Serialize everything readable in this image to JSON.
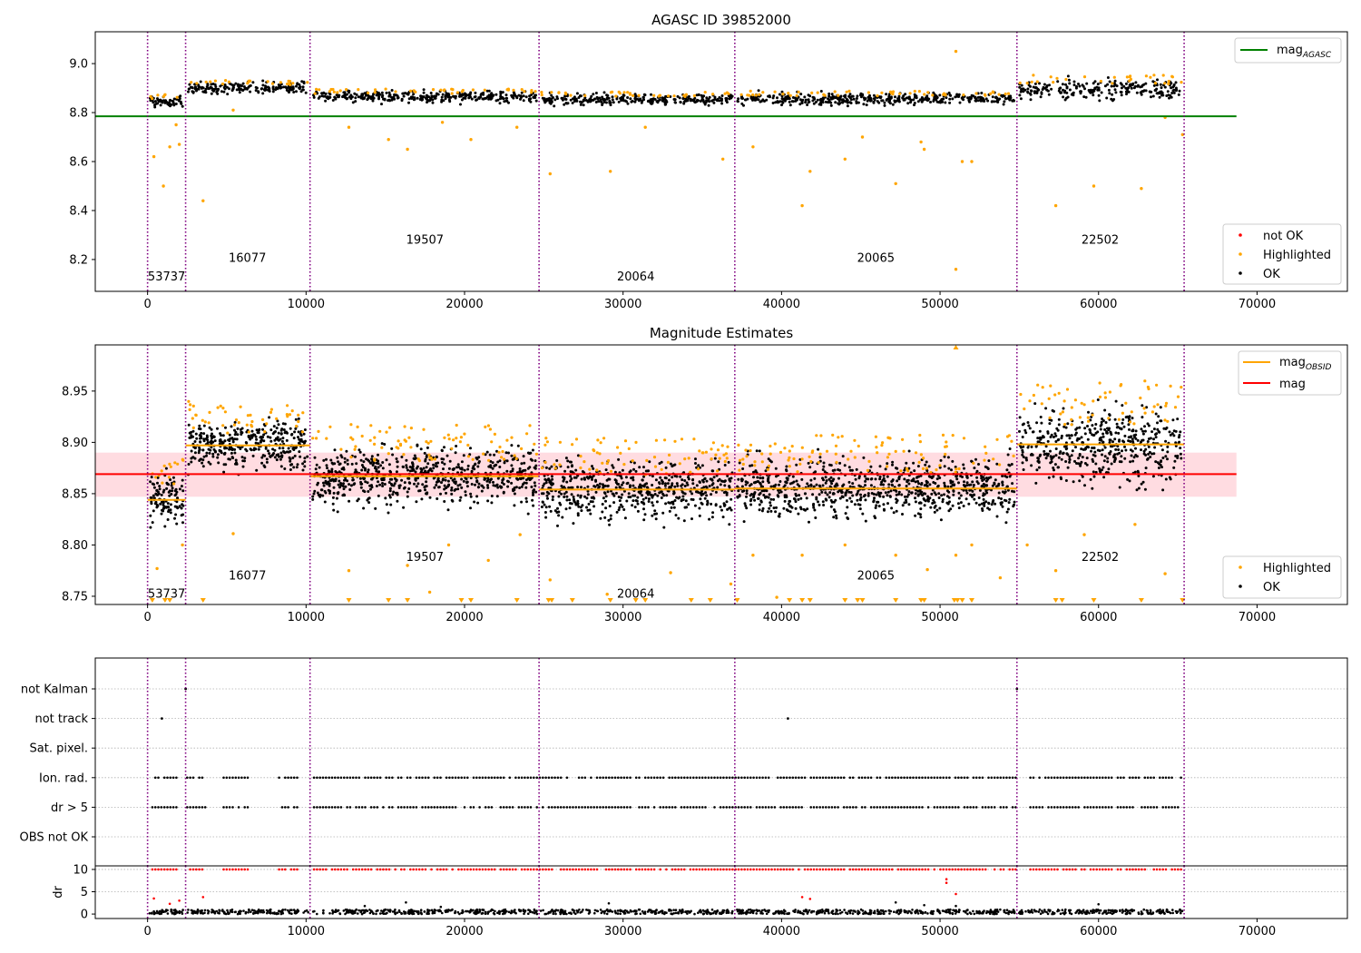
{
  "chart_data": [
    {
      "type": "scatter",
      "title": "AGASC ID 39852000",
      "xlim": [
        -3300,
        75700
      ],
      "ylim": [
        8.07,
        9.13
      ],
      "x_ticks": [
        0,
        10000,
        20000,
        30000,
        40000,
        50000,
        60000,
        70000
      ],
      "y_ticks": [
        8.2,
        8.4,
        8.6,
        8.8,
        9.0
      ],
      "obs_boundaries": [
        0,
        2400,
        10250,
        24700,
        37050,
        54850,
        65400
      ],
      "obs_labels": [
        {
          "text": "53737",
          "x": 1200,
          "y": 8.13
        },
        {
          "text": "16077",
          "x": 6300,
          "y": 8.205
        },
        {
          "text": "19507",
          "x": 17500,
          "y": 8.28
        },
        {
          "text": "20064",
          "x": 30800,
          "y": 8.13
        },
        {
          "text": "20065",
          "x": 45950,
          "y": 8.205
        },
        {
          "text": "22502",
          "x": 60100,
          "y": 8.28
        }
      ],
      "reference_lines": [
        {
          "name": "mag_AGASC",
          "y": 8.785,
          "x_range": [
            -3300,
            68700
          ],
          "color": "#008000"
        }
      ],
      "segments": [
        {
          "x": [
            0,
            2400
          ],
          "mean": 8.845,
          "spread": 0.022
        },
        {
          "x": [
            2400,
            10250
          ],
          "mean": 8.9,
          "spread": 0.022
        },
        {
          "x": [
            10250,
            24700
          ],
          "mean": 8.865,
          "spread": 0.022
        },
        {
          "x": [
            24700,
            37050
          ],
          "mean": 8.853,
          "spread": 0.022
        },
        {
          "x": [
            37050,
            54850
          ],
          "mean": 8.856,
          "spread": 0.022
        },
        {
          "x": [
            54850,
            65400
          ],
          "mean": 8.895,
          "spread": 0.04
        }
      ],
      "highlighted_outliers": [
        {
          "x": 400,
          "y": 8.62
        },
        {
          "x": 1000,
          "y": 8.5
        },
        {
          "x": 1400,
          "y": 8.66
        },
        {
          "x": 1800,
          "y": 8.75
        },
        {
          "x": 2000,
          "y": 8.67
        },
        {
          "x": 3500,
          "y": 8.44
        },
        {
          "x": 5400,
          "y": 8.81
        },
        {
          "x": 12700,
          "y": 8.74
        },
        {
          "x": 15200,
          "y": 8.69
        },
        {
          "x": 16400,
          "y": 8.65
        },
        {
          "x": 18600,
          "y": 8.76
        },
        {
          "x": 20400,
          "y": 8.69
        },
        {
          "x": 23300,
          "y": 8.74
        },
        {
          "x": 25400,
          "y": 8.55
        },
        {
          "x": 29200,
          "y": 8.56
        },
        {
          "x": 31400,
          "y": 8.74
        },
        {
          "x": 36300,
          "y": 8.61
        },
        {
          "x": 38200,
          "y": 8.66
        },
        {
          "x": 41300,
          "y": 8.42
        },
        {
          "x": 41800,
          "y": 8.56
        },
        {
          "x": 44000,
          "y": 8.61
        },
        {
          "x": 45100,
          "y": 8.7
        },
        {
          "x": 47200,
          "y": 8.51
        },
        {
          "x": 48800,
          "y": 8.68
        },
        {
          "x": 49000,
          "y": 8.65
        },
        {
          "x": 51000,
          "y": 9.05
        },
        {
          "x": 51000,
          "y": 8.16
        },
        {
          "x": 51400,
          "y": 8.6
        },
        {
          "x": 52000,
          "y": 8.6
        },
        {
          "x": 57300,
          "y": 8.42
        },
        {
          "x": 59700,
          "y": 8.5
        },
        {
          "x": 62700,
          "y": 8.49
        },
        {
          "x": 64200,
          "y": 8.78
        },
        {
          "x": 65300,
          "y": 8.71
        }
      ],
      "legends": [
        {
          "position": "upper-right",
          "items": [
            {
              "label": "mag",
              "subscript": "AGASC",
              "marker": "line",
              "color": "#008000"
            }
          ]
        },
        {
          "position": "lower-right",
          "items": [
            {
              "label": "not OK",
              "marker": "dot",
              "color": "#ff0000"
            },
            {
              "label": "Highlighted",
              "marker": "dot",
              "color": "#ffa500"
            },
            {
              "label": "OK",
              "marker": "dot",
              "color": "#000000"
            }
          ]
        }
      ]
    },
    {
      "type": "scatter",
      "title": "Magnitude Estimates",
      "xlim": [
        -3300,
        75700
      ],
      "ylim": [
        8.742,
        8.995
      ],
      "x_ticks": [
        0,
        10000,
        20000,
        30000,
        40000,
        50000,
        60000,
        70000
      ],
      "y_ticks": [
        8.75,
        8.8,
        8.85,
        8.9,
        8.95
      ],
      "obs_boundaries": [
        0,
        2400,
        10250,
        24700,
        37050,
        54850,
        65400
      ],
      "obs_labels": [
        {
          "text": "53737",
          "x": 1200,
          "y": 8.752
        },
        {
          "text": "16077",
          "x": 6300,
          "y": 8.77
        },
        {
          "text": "19507",
          "x": 17500,
          "y": 8.788
        },
        {
          "text": "20064",
          "x": 30800,
          "y": 8.752
        },
        {
          "text": "20065",
          "x": 45950,
          "y": 8.77
        },
        {
          "text": "22502",
          "x": 60100,
          "y": 8.788
        }
      ],
      "mag": {
        "y": 8.869,
        "band": [
          8.847,
          8.89
        ],
        "x_range": [
          -3300,
          68700
        ],
        "color": "#ff0000"
      },
      "segments": [
        {
          "x": [
            0,
            2400
          ],
          "mean": 8.844,
          "spread": 0.022
        },
        {
          "x": [
            2400,
            10250
          ],
          "mean": 8.897,
          "spread": 0.022
        },
        {
          "x": [
            10250,
            24700
          ],
          "mean": 8.867,
          "spread": 0.026
        },
        {
          "x": [
            24700,
            37050
          ],
          "mean": 8.854,
          "spread": 0.026
        },
        {
          "x": [
            37050,
            54850
          ],
          "mean": 8.855,
          "spread": 0.027
        },
        {
          "x": [
            54850,
            65400
          ],
          "mean": 8.898,
          "spread": 0.032
        }
      ],
      "highlighted_outliers": [
        {
          "x": 600,
          "y": 8.777
        },
        {
          "x": 2200,
          "y": 8.8
        },
        {
          "x": 5400,
          "y": 8.811
        },
        {
          "x": 12700,
          "y": 8.775
        },
        {
          "x": 16400,
          "y": 8.78
        },
        {
          "x": 17800,
          "y": 8.754
        },
        {
          "x": 19000,
          "y": 8.8
        },
        {
          "x": 21500,
          "y": 8.785
        },
        {
          "x": 23500,
          "y": 8.81
        },
        {
          "x": 25400,
          "y": 8.766
        },
        {
          "x": 29000,
          "y": 8.752
        },
        {
          "x": 33000,
          "y": 8.773
        },
        {
          "x": 36800,
          "y": 8.762
        },
        {
          "x": 38200,
          "y": 8.79
        },
        {
          "x": 39700,
          "y": 8.749
        },
        {
          "x": 41300,
          "y": 8.79
        },
        {
          "x": 44000,
          "y": 8.8
        },
        {
          "x": 47200,
          "y": 8.79
        },
        {
          "x": 49200,
          "y": 8.776
        },
        {
          "x": 51000,
          "y": 8.79
        },
        {
          "x": 52000,
          "y": 8.8
        },
        {
          "x": 53800,
          "y": 8.768
        },
        {
          "x": 55500,
          "y": 8.8
        },
        {
          "x": 57300,
          "y": 8.775
        },
        {
          "x": 59100,
          "y": 8.81
        },
        {
          "x": 62300,
          "y": 8.82
        },
        {
          "x": 64200,
          "y": 8.772
        }
      ],
      "clipped_markers_x": [
        300,
        1100,
        1400,
        3500,
        12700,
        15200,
        16400,
        19800,
        20400,
        23300,
        25300,
        25500,
        26800,
        29200,
        30800,
        31400,
        34300,
        35500,
        37200,
        40500,
        41300,
        41800,
        44000,
        44800,
        45100,
        47200,
        48800,
        49000,
        50900,
        51100,
        51400,
        52000,
        57300,
        57700,
        59700,
        62700,
        65300
      ],
      "top_clipped_marker": {
        "x": 51000,
        "y": 8.993
      },
      "legends": [
        {
          "position": "upper-right",
          "items": [
            {
              "label": "mag",
              "subscript": "OBSID",
              "marker": "line",
              "color": "#ffa500"
            },
            {
              "label": "mag",
              "marker": "line",
              "color": "#ff0000"
            }
          ]
        },
        {
          "position": "lower-right",
          "items": [
            {
              "label": "Highlighted",
              "marker": "dot",
              "color": "#ffa500"
            },
            {
              "label": "OK",
              "marker": "dot",
              "color": "#000000"
            }
          ]
        }
      ]
    },
    {
      "type": "scatter",
      "xlim": [
        -3300,
        75700
      ],
      "x_ticks": [
        0,
        10000,
        20000,
        30000,
        40000,
        50000,
        60000,
        70000
      ],
      "categories": [
        "not Kalman",
        "not track",
        "Sat. pixel.",
        "Ion. rad.",
        "dr > 5",
        "OBS not OK"
      ],
      "obs_boundaries": [
        0,
        2400,
        10250,
        24700,
        37050,
        54850,
        65400
      ],
      "flag_points": [
        {
          "category": "not Kalman",
          "x": [
            2400,
            54850
          ]
        },
        {
          "category": "not track",
          "x": [
            900,
            40400
          ]
        }
      ],
      "flag_runs": [
        {
          "categories": [
            "Ion. rad.",
            "dr > 5"
          ],
          "x_ranges": [
            [
              300,
              2000
            ],
            [
              2500,
              3700
            ],
            [
              4800,
              6500
            ],
            [
              8300,
              9500
            ],
            [
              10500,
              54800
            ],
            [
              55700,
              65300
            ]
          ]
        }
      ],
      "dr_panel": {
        "ylabel": "dr",
        "y_ticks": [
          0,
          5,
          10
        ],
        "ylim": [
          -1,
          10.8
        ],
        "clipped_value": 10,
        "ok_band": [
          0,
          1
        ],
        "not_ok_points": [
          {
            "x": 400,
            "y": 3.5
          },
          {
            "x": 1400,
            "y": 2.3
          },
          {
            "x": 2000,
            "y": 3.0
          },
          {
            "x": 3500,
            "y": 3.8
          },
          {
            "x": 41300,
            "y": 3.8
          },
          {
            "x": 41800,
            "y": 3.4
          },
          {
            "x": 50400,
            "y": 7.8
          },
          {
            "x": 50400,
            "y": 7.0
          },
          {
            "x": 51000,
            "y": 4.5
          }
        ],
        "ok_outliers": [
          {
            "x": 16300,
            "y": 2.6
          },
          {
            "x": 29100,
            "y": 2.4
          },
          {
            "x": 47200,
            "y": 2.6
          },
          {
            "x": 49000,
            "y": 2.0
          },
          {
            "x": 51000,
            "y": 1.8
          },
          {
            "x": 60000,
            "y": 2.2
          },
          {
            "x": 13700,
            "y": 1.8
          },
          {
            "x": 18500,
            "y": 1.6
          }
        ]
      }
    }
  ]
}
